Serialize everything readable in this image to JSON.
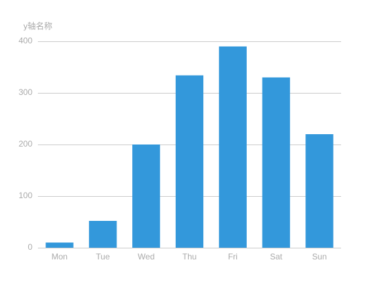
{
  "chart_data": {
    "type": "bar",
    "y_axis_name": "y轴名称",
    "categories": [
      "Mon",
      "Tue",
      "Wed",
      "Thu",
      "Fri",
      "Sat",
      "Sun"
    ],
    "values": [
      10,
      52,
      200,
      334,
      390,
      330,
      220
    ],
    "color": "#3398DB",
    "ylim": [
      0,
      400
    ],
    "yticks": [
      0,
      100,
      200,
      300,
      400
    ],
    "grid": true
  }
}
